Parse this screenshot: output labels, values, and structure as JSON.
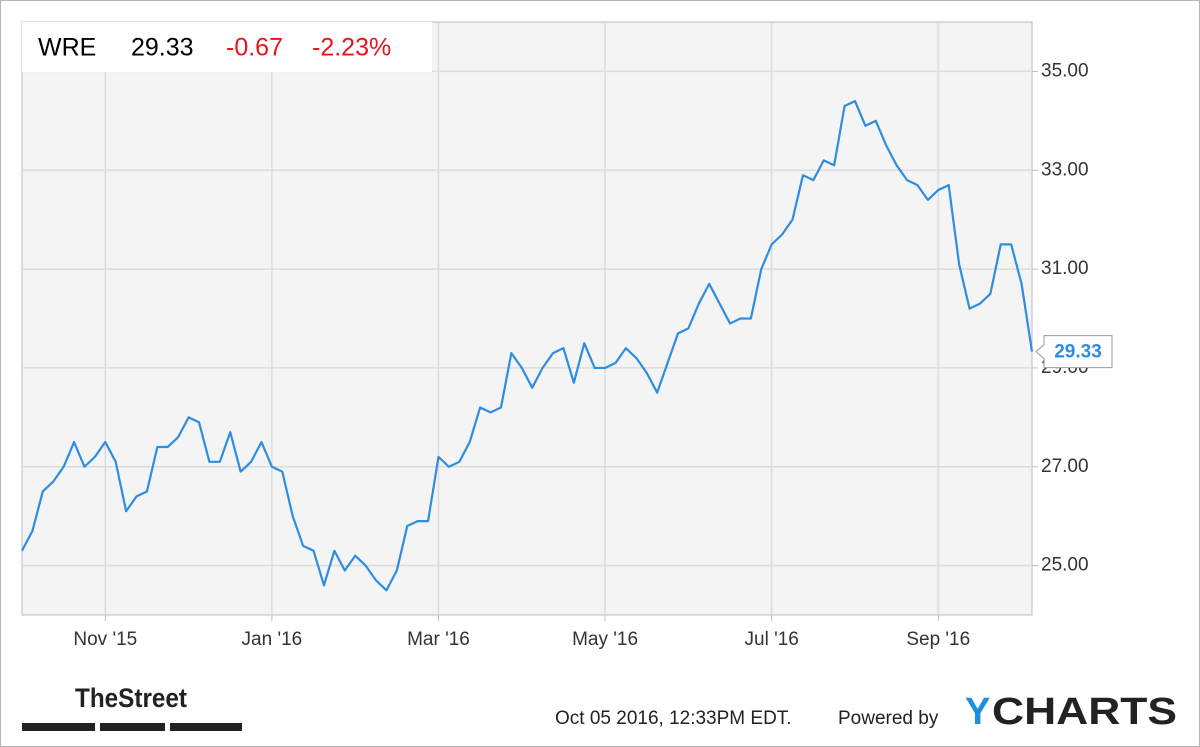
{
  "header": {
    "ticker": "WRE",
    "price": 29.33,
    "change": -0.67,
    "change_percent": "-2.23%"
  },
  "footer": {
    "brand": "TheStreet",
    "timestamp": "Oct 05 2016, 12:33PM EDT.",
    "powered_by": "Powered by",
    "logo_y": "Y",
    "logo_rest": "CHARTS"
  },
  "chart_data": {
    "type": "line",
    "color": "#2e8de0",
    "grid": true,
    "categories": [
      null,
      null,
      null,
      null,
      null,
      null,
      null,
      null,
      "Nov '15",
      null,
      null,
      null,
      null,
      null,
      null,
      null,
      null,
      null,
      null,
      null,
      null,
      null,
      null,
      null,
      "Jan '16",
      null,
      null,
      null,
      null,
      null,
      null,
      null,
      null,
      null,
      null,
      null,
      null,
      null,
      null,
      null,
      "Mar '16",
      null,
      null,
      null,
      null,
      null,
      null,
      null,
      null,
      null,
      null,
      null,
      null,
      null,
      null,
      null,
      "May '16",
      null,
      null,
      null,
      null,
      null,
      null,
      null,
      null,
      null,
      null,
      null,
      null,
      null,
      null,
      null,
      "Jul '16",
      null,
      null,
      null,
      null,
      null,
      null,
      null,
      null,
      null,
      null,
      null,
      null,
      null,
      null,
      null,
      "Sep '16",
      null,
      null,
      null,
      null,
      null,
      null,
      null,
      null,
      null
    ],
    "values": [
      25.3,
      25.7,
      26.5,
      26.7,
      27.0,
      27.5,
      27.0,
      27.2,
      27.5,
      27.1,
      26.1,
      26.4,
      26.5,
      27.4,
      27.4,
      27.6,
      28.0,
      27.9,
      27.1,
      27.1,
      27.7,
      26.9,
      27.1,
      27.5,
      27.0,
      26.9,
      26.0,
      25.4,
      25.3,
      24.6,
      25.3,
      24.9,
      25.2,
      25.0,
      24.7,
      24.5,
      24.9,
      25.8,
      25.9,
      25.9,
      27.2,
      27.0,
      27.1,
      27.5,
      28.2,
      28.1,
      28.2,
      29.3,
      29.0,
      28.6,
      29.0,
      29.3,
      29.4,
      28.7,
      29.5,
      29.0,
      29.0,
      29.1,
      29.4,
      29.2,
      28.9,
      28.5,
      29.1,
      29.7,
      29.8,
      30.3,
      30.7,
      30.3,
      29.9,
      30.0,
      30.0,
      31.0,
      31.5,
      31.7,
      32.0,
      32.9,
      32.8,
      33.2,
      33.1,
      34.3,
      34.4,
      33.9,
      34.0,
      33.5,
      33.1,
      32.8,
      32.7,
      32.4,
      32.6,
      32.7,
      31.1,
      30.2,
      30.3,
      30.5,
      31.5,
      31.5,
      30.7,
      29.33
    ],
    "ylim": [
      24,
      36
    ],
    "yticks": [
      {
        "value": 25,
        "label": "25.00"
      },
      {
        "value": 27,
        "label": "27.00"
      },
      {
        "value": 29,
        "label": "29.00"
      },
      {
        "value": 31,
        "label": "31.00"
      },
      {
        "value": 33,
        "label": "33.00"
      },
      {
        "value": 35,
        "label": "35.00"
      }
    ]
  }
}
